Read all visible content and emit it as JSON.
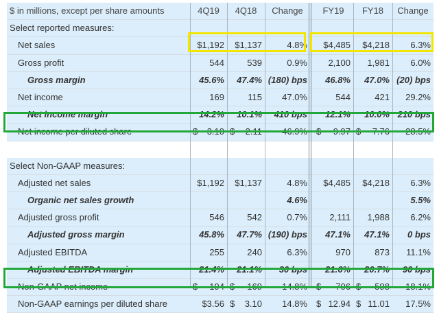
{
  "header": {
    "label": "$ in millions, except per share amounts",
    "cols": [
      "4Q19",
      "4Q18",
      "Change",
      "FY19",
      "FY18",
      "Change"
    ]
  },
  "reported": {
    "section_title": "Select reported measures:",
    "net_sales": {
      "label": "Net sales",
      "v": [
        "$1,192",
        "$1,137",
        "4.8%",
        "$4,485",
        "$4,218",
        "6.3%"
      ]
    },
    "gross_profit": {
      "label": "Gross profit",
      "v": [
        "544",
        "539",
        "0.9%",
        "2,100",
        "1,981",
        "6.0%"
      ]
    },
    "gross_margin": {
      "label": "Gross margin",
      "v": [
        "45.6%",
        "47.4%",
        "(180) bps",
        "46.8%",
        "47.0%",
        "(20) bps"
      ]
    },
    "net_income": {
      "label": "Net income",
      "v": [
        "169",
        "115",
        "47.0%",
        "544",
        "421",
        "29.2%"
      ]
    },
    "net_income_margin": {
      "label": "Net income margin",
      "v": [
        "14.2%",
        "10.1%",
        "410 bps",
        "12.1%",
        "10.0%",
        "210 bps"
      ]
    },
    "eps": {
      "label": "Net income per diluted share",
      "v": [
        "3.10",
        "2.11",
        "46.9%",
        "9.97",
        "7.76",
        "28.5%"
      ]
    }
  },
  "non_gaap": {
    "section_title": "Select Non-GAAP measures:",
    "adj_net_sales": {
      "label": "Adjusted net sales",
      "v": [
        "$1,192",
        "$1,137",
        "4.8%",
        "$4,485",
        "$4,218",
        "6.3%"
      ]
    },
    "organic": {
      "label": "Organic net sales growth",
      "v": [
        "",
        "",
        "4.6%",
        "",
        "",
        "5.5%"
      ]
    },
    "adj_gross_profit": {
      "label": "Adjusted gross profit",
      "v": [
        "546",
        "542",
        "0.7%",
        "2,111",
        "1,988",
        "6.2%"
      ]
    },
    "adj_gross_margin": {
      "label": "Adjusted gross margin",
      "v": [
        "45.8%",
        "47.7%",
        "(190) bps",
        "47.1%",
        "47.1%",
        "0 bps"
      ]
    },
    "adj_ebitda": {
      "label": "Adjusted EBITDA",
      "v": [
        "255",
        "240",
        "6.3%",
        "970",
        "873",
        "11.1%"
      ]
    },
    "adj_ebitda_margin": {
      "label": "Adjusted EBITDA margin",
      "v": [
        "21.4%",
        "21.1%",
        "30 bps",
        "21.6%",
        "20.7%",
        "90 bps"
      ]
    },
    "ng_net_income": {
      "label": "Non-GAAP net income",
      "v": [
        "194",
        "169",
        "14.8%",
        "706",
        "598",
        "18.1%"
      ]
    },
    "ng_eps": {
      "label": "Non-GAAP earnings per diluted share",
      "v": [
        "$3.56",
        "3.10",
        "14.8%",
        "12.94",
        "11.01",
        "17.5%"
      ]
    }
  },
  "dollar_sign": "$",
  "colors": {
    "band": "#dceefb",
    "highlight_yellow": "#f2e600",
    "highlight_green": "#22a83a"
  }
}
